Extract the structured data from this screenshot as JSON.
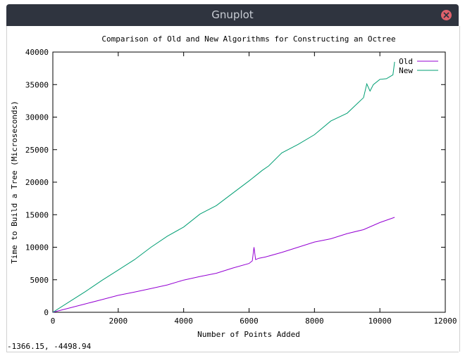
{
  "window": {
    "title": "Gnuplot"
  },
  "icons": {
    "close": "close-icon"
  },
  "status": {
    "coordinates": "-1366.15, -4498.94"
  },
  "chart_data": {
    "type": "line",
    "title": "Comparison of Old and New Algorithms for Constructing an Octree",
    "xlabel": "Number of Points Added",
    "ylabel": "Time to Build a Tree (Microseconds)",
    "xlim": [
      0,
      12000
    ],
    "ylim": [
      0,
      40000
    ],
    "x_ticks": [
      0,
      2000,
      4000,
      6000,
      8000,
      10000,
      12000
    ],
    "y_ticks": [
      0,
      5000,
      10000,
      15000,
      20000,
      25000,
      30000,
      35000,
      40000
    ],
    "x_tick_labels": [
      "0",
      "2000",
      "4000",
      "6000",
      "8000",
      "10000",
      "12000"
    ],
    "y_tick_labels": [
      "0",
      "5000",
      "10000",
      "15000",
      "20000",
      "25000",
      "30000",
      "35000",
      "40000"
    ],
    "legend": "top-right",
    "grid": false,
    "series": [
      {
        "name": "Old",
        "color": "#9400d3",
        "x": [
          0,
          500,
          1000,
          1500,
          2000,
          2500,
          3000,
          3500,
          4000,
          4500,
          5000,
          5500,
          6000,
          6100,
          6150,
          6200,
          6300,
          6500,
          7000,
          7500,
          8000,
          8500,
          9000,
          9500,
          10000,
          10450
        ],
        "y": [
          0,
          650,
          1300,
          1950,
          2600,
          3100,
          3650,
          4200,
          4950,
          5500,
          6000,
          6800,
          7500,
          7900,
          10000,
          8100,
          8300,
          8500,
          9200,
          10000,
          10800,
          11300,
          12100,
          12700,
          13800,
          14600
        ]
      },
      {
        "name": "New",
        "color": "#009e73",
        "x": [
          0,
          500,
          1000,
          1500,
          2000,
          2500,
          3000,
          3500,
          4000,
          4500,
          5000,
          5500,
          6000,
          6200,
          6400,
          6600,
          7000,
          7500,
          8000,
          8500,
          9000,
          9500,
          9600,
          9700,
          9800,
          10000,
          10200,
          10400,
          10450
        ],
        "y": [
          0,
          1600,
          3200,
          4900,
          6500,
          8100,
          10000,
          11700,
          13100,
          15100,
          16400,
          18300,
          20200,
          21000,
          21800,
          22500,
          24500,
          25800,
          27300,
          29400,
          30600,
          33000,
          35100,
          34000,
          35000,
          35800,
          35900,
          36500,
          38500
        ]
      }
    ]
  }
}
